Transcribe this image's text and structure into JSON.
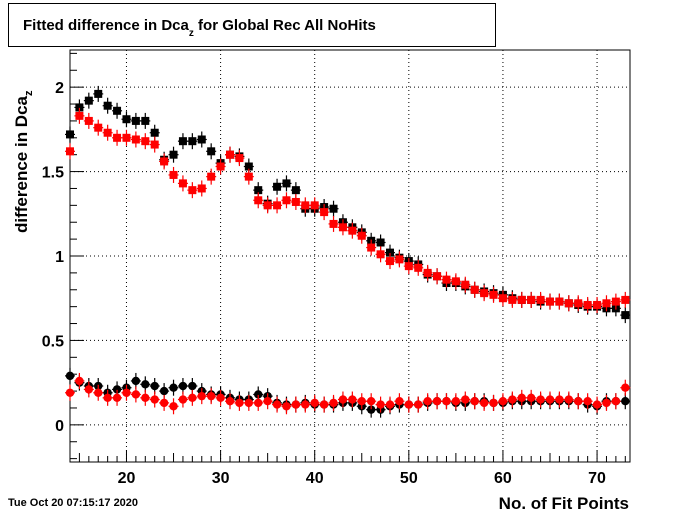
{
  "chart_data": {
    "type": "scatter",
    "title_main": "Fitted difference in Dca",
    "title_sub": "z",
    "title_rest": " for Global Rec All NoHits",
    "xlabel": "No. of Fit Points",
    "ylabel_main": "difference in Dca",
    "ylabel_sub": "z",
    "xlim": [
      14,
      73.5
    ],
    "ylim": [
      -0.22,
      2.22
    ],
    "xticks": [
      20,
      30,
      40,
      50,
      60,
      70
    ],
    "yticks": [
      0,
      0.5,
      1,
      1.5,
      2
    ],
    "grid": true,
    "timestamp": "Tue Oct 20 07:15:17 2020",
    "x": [
      14,
      15,
      16,
      17,
      18,
      19,
      20,
      21,
      22,
      23,
      24,
      25,
      26,
      27,
      28,
      29,
      30,
      31,
      32,
      33,
      34,
      35,
      36,
      37,
      38,
      39,
      40,
      41,
      42,
      43,
      44,
      45,
      46,
      47,
      48,
      49,
      50,
      51,
      52,
      53,
      54,
      55,
      56,
      57,
      58,
      59,
      60,
      61,
      62,
      63,
      64,
      65,
      66,
      67,
      68,
      69,
      70,
      71,
      72,
      73
    ],
    "series": [
      {
        "color": "#000000",
        "marker": "square",
        "values": [
          1.72,
          1.88,
          1.92,
          1.96,
          1.89,
          1.86,
          1.81,
          1.8,
          1.8,
          1.73,
          1.57,
          1.6,
          1.68,
          1.68,
          1.69,
          1.62,
          1.55,
          1.6,
          1.59,
          1.53,
          1.39,
          1.31,
          1.41,
          1.43,
          1.39,
          1.28,
          1.28,
          1.29,
          1.28,
          1.2,
          1.17,
          1.14,
          1.09,
          1.08,
          1.02,
          0.99,
          0.97,
          0.95,
          0.89,
          0.88,
          0.84,
          0.84,
          0.82,
          0.8,
          0.79,
          0.78,
          0.77,
          0.75,
          0.74,
          0.74,
          0.73,
          0.73,
          0.73,
          0.72,
          0.71,
          0.7,
          0.7,
          0.69,
          0.69,
          0.65
        ]
      },
      {
        "color": "#ff0000",
        "marker": "square",
        "values": [
          1.62,
          1.83,
          1.8,
          1.76,
          1.73,
          1.7,
          1.7,
          1.69,
          1.68,
          1.66,
          1.56,
          1.48,
          1.43,
          1.39,
          1.4,
          1.47,
          1.53,
          1.6,
          1.58,
          1.47,
          1.33,
          1.3,
          1.3,
          1.33,
          1.32,
          1.3,
          1.3,
          1.26,
          1.19,
          1.17,
          1.15,
          1.12,
          1.05,
          1.01,
          0.97,
          0.98,
          0.94,
          0.93,
          0.9,
          0.88,
          0.86,
          0.85,
          0.83,
          0.8,
          0.78,
          0.77,
          0.75,
          0.74,
          0.74,
          0.74,
          0.74,
          0.73,
          0.73,
          0.72,
          0.72,
          0.71,
          0.71,
          0.72,
          0.73,
          0.74
        ]
      },
      {
        "color": "#000000",
        "marker": "circle",
        "values": [
          0.29,
          0.25,
          0.23,
          0.23,
          0.19,
          0.21,
          0.22,
          0.26,
          0.24,
          0.23,
          0.2,
          0.22,
          0.23,
          0.23,
          0.2,
          0.18,
          0.18,
          0.16,
          0.15,
          0.15,
          0.18,
          0.17,
          0.13,
          0.12,
          0.12,
          0.13,
          0.12,
          0.12,
          0.12,
          0.13,
          0.13,
          0.11,
          0.09,
          0.09,
          0.11,
          0.12,
          0.12,
          0.12,
          0.13,
          0.14,
          0.14,
          0.13,
          0.13,
          0.14,
          0.14,
          0.13,
          0.13,
          0.14,
          0.14,
          0.14,
          0.14,
          0.14,
          0.14,
          0.14,
          0.14,
          0.12,
          0.11,
          0.14,
          0.14,
          0.14
        ]
      },
      {
        "color": "#ff0000",
        "marker": "circle",
        "values": [
          0.19,
          0.26,
          0.21,
          0.19,
          0.16,
          0.16,
          0.19,
          0.18,
          0.16,
          0.15,
          0.13,
          0.11,
          0.15,
          0.16,
          0.17,
          0.17,
          0.16,
          0.14,
          0.13,
          0.13,
          0.13,
          0.14,
          0.12,
          0.11,
          0.12,
          0.12,
          0.13,
          0.12,
          0.13,
          0.15,
          0.15,
          0.14,
          0.14,
          0.12,
          0.12,
          0.14,
          0.12,
          0.12,
          0.14,
          0.14,
          0.14,
          0.14,
          0.15,
          0.14,
          0.13,
          0.13,
          0.14,
          0.15,
          0.16,
          0.16,
          0.15,
          0.15,
          0.15,
          0.15,
          0.14,
          0.14,
          0.12,
          0.13,
          0.14,
          0.22
        ]
      }
    ]
  }
}
